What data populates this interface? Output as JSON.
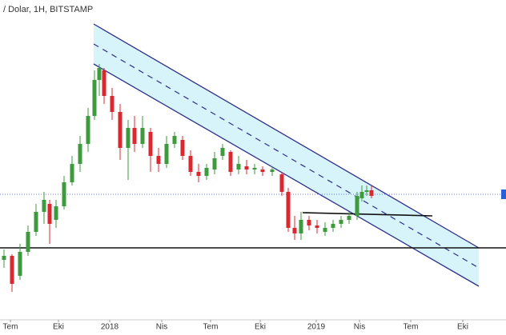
{
  "chart_data": {
    "type": "candlestick",
    "title": "/ Dolar, 1H, BITSTAMP",
    "x": [
      5,
      15,
      25,
      35,
      45,
      55,
      62,
      70,
      80,
      90,
      100,
      110,
      118,
      124,
      130,
      140,
      150,
      160,
      168,
      178,
      188,
      198,
      208,
      218,
      228,
      238,
      248,
      258,
      268,
      278,
      288,
      298,
      308,
      318,
      328,
      340,
      352,
      360,
      368,
      376,
      386,
      396,
      406,
      416,
      426,
      436,
      446,
      452,
      458,
      464
    ],
    "open": [
      75,
      80,
      55,
      85,
      110,
      135,
      145,
      125,
      142,
      172,
      195,
      220,
      255,
      300,
      312,
      280,
      260,
      215,
      240,
      220,
      235,
      205,
      195,
      220,
      225,
      205,
      185,
      180,
      188,
      205,
      210,
      188,
      192,
      188,
      188,
      185,
      182,
      160,
      115,
      108,
      125,
      118,
      110,
      115,
      120,
      125,
      130,
      152,
      160,
      162
    ],
    "high": [
      88,
      82,
      95,
      118,
      145,
      160,
      150,
      150,
      180,
      205,
      230,
      265,
      312,
      320,
      315,
      290,
      270,
      250,
      255,
      255,
      240,
      215,
      230,
      235,
      230,
      212,
      195,
      195,
      210,
      220,
      212,
      205,
      200,
      195,
      192,
      192,
      185,
      165,
      130,
      135,
      130,
      125,
      122,
      125,
      130,
      135,
      160,
      168,
      168,
      168
    ],
    "low": [
      65,
      35,
      50,
      80,
      105,
      120,
      95,
      115,
      138,
      168,
      185,
      210,
      250,
      280,
      270,
      250,
      200,
      175,
      210,
      215,
      185,
      185,
      190,
      215,
      200,
      180,
      172,
      175,
      182,
      200,
      180,
      182,
      182,
      182,
      180,
      180,
      155,
      110,
      100,
      100,
      112,
      108,
      105,
      110,
      115,
      120,
      125,
      148,
      155,
      152
    ],
    "close": [
      80,
      45,
      85,
      110,
      135,
      150,
      120,
      142,
      172,
      195,
      220,
      255,
      300,
      315,
      280,
      260,
      215,
      240,
      220,
      240,
      205,
      195,
      220,
      230,
      205,
      185,
      180,
      190,
      202,
      215,
      185,
      195,
      188,
      190,
      185,
      188,
      160,
      115,
      108,
      125,
      118,
      115,
      115,
      120,
      125,
      130,
      155,
      160,
      162,
      155
    ],
    "up_color": "#3d9a3d",
    "down_color": "#d9282f",
    "xlim": [
      0,
      632
    ],
    "ylim": [
      0,
      400
    ],
    "xticks": [
      {
        "value": 13,
        "label": "Tem"
      },
      {
        "value": 73,
        "label": "Eki"
      },
      {
        "value": 137,
        "label": "2018"
      },
      {
        "value": 202,
        "label": "Nis"
      },
      {
        "value": 263,
        "label": "Tem"
      },
      {
        "value": 325,
        "label": "Eki"
      },
      {
        "value": 395,
        "label": "2019"
      },
      {
        "value": 449,
        "label": "Nis"
      },
      {
        "value": 513,
        "label": "Tem"
      },
      {
        "value": 578,
        "label": "Eki"
      }
    ]
  }
}
